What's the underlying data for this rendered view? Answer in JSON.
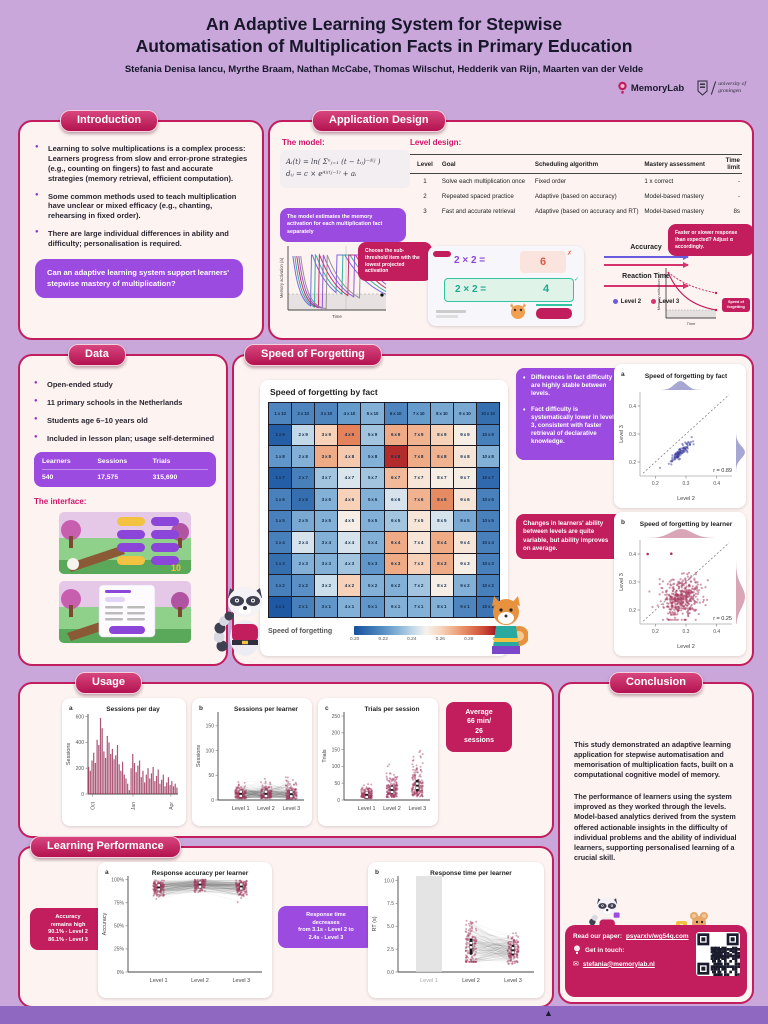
{
  "poster": {
    "title_line1": "An Adaptive Learning System for Stepwise",
    "title_line2": "Automatisation of Multiplication Facts in Primary Education",
    "authors": "Stefania Denisa Iancu, Myrthe Braam, Nathan McCabe, Thomas Wilschut, Hedderik van Rijn, Maarten van der Velde",
    "logos": {
      "memorylab": "MemoryLab",
      "university_line1": "university of",
      "university_line2": "groningen"
    }
  },
  "colors": {
    "accent_crimson": "#c21d5c",
    "accent_purple": "#9b4be0",
    "lavender_bg": "#c9a7db",
    "panel_bg": "#fdf4f2",
    "heat_blue": "#15509d",
    "heat_red": "#9e1020"
  },
  "introduction": {
    "heading": "Introduction",
    "bullets": [
      "Learning to solve multiplications is a complex process: Learners progress from slow and error-prone strategies (e.g., counting on fingers) to fast and accurate strategies (memory retrieval, efficient computation).",
      "Some common methods used to teach multiplication have unclear or mixed efficacy (e.g., chanting, rehearsing in fixed order).",
      "There are large individual differences in ability and difficulty; personalisation is required."
    ],
    "question": "Can an adaptive learning system support learners' stepwise mastery of multiplication?"
  },
  "application_design": {
    "heading": "Application Design",
    "model_label": "The model:",
    "formula_line1": "Aᵢ(t) = ln( Σⁿⱼ₌₁ (t − tᵢⱼ)⁻ᵈⁱʲ )",
    "formula_line2": "dᵢⱼ = c × eᴬⁱ⁽ᵗʲ⁻¹⁾ + aᵢ",
    "model_note": "The model estimates the memory activation for each multiplication fact separately",
    "level_label": "Level design:",
    "table": {
      "headers": [
        "Level",
        "Goal",
        "Scheduling algorithm",
        "Mastery assessment",
        "Time limit"
      ],
      "rows": [
        [
          "1",
          "Solve each multiplication once",
          "Fixed order",
          "1 x correct",
          "-"
        ],
        [
          "2",
          "Repeated spaced practice",
          "Adaptive (based on accuracy)",
          "Model-based mastery",
          "-"
        ],
        [
          "3",
          "Fast and accurate retrieval",
          "Adaptive (based on accuracy and RT)",
          "Model-based mastery",
          "8s"
        ]
      ]
    },
    "callout_choose": "Choose the sub-threshold item with the lowest projected activation",
    "callout_adjust": "Faster or slower response than expected? Adjust α accordingly.",
    "axis_y": "Memory activation (a)",
    "axis_x": "Time",
    "speed_chip_line1": "Speed of",
    "speed_chip_line2": "forgetting",
    "flow": {
      "accuracy_label": "Accuracy",
      "reaction_time_label": "Reaction Time",
      "legend": [
        "Level 2",
        "Level 3"
      ]
    },
    "demo": {
      "q1": "2 × 2 =",
      "a1": "6",
      "q2": "2 × 2 =",
      "a2": "4"
    }
  },
  "data_section": {
    "heading": "Data",
    "bullets": [
      "Open-ended study",
      "11 primary schools in the Netherlands",
      "Students age 6–10 years old",
      "Included in lesson plan; usage self-determined"
    ],
    "stats": {
      "headers": [
        "Learners",
        "Sessions",
        "Trials"
      ],
      "values": [
        "540",
        "17,575",
        "315,690"
      ]
    },
    "interface_label": "The interface:"
  },
  "speed_of_forgetting": {
    "heading": "Speed of Forgetting",
    "callout_stability": [
      "Differences in fact difficulty are highly stable between levels.",
      "Fact difficulty is systematically lower in level 3, consistent with faster retrieval of declarative knowledge."
    ],
    "callout_learners": "Changes in learners' ability between levels are quite variable, but ability improves on average."
  },
  "usage": {
    "heading": "Usage",
    "badge_lines": [
      "Average",
      "66 min/",
      "26",
      "sessions"
    ]
  },
  "learning_performance": {
    "heading": "Learning Performance",
    "badge_accuracy_lines": [
      "Accuracy",
      "remains high",
      "90.1% - Level 2",
      "86.1% - Level 3"
    ],
    "badge_rt_lines": [
      "Response time",
      "decreases",
      "from 3.1s - Level 2 to",
      "2.4s - Level 3"
    ]
  },
  "conclusion": {
    "heading": "Conclusion",
    "p1": "This study demonstrated an adaptive learning application for stepwise automatisation and memorisation of multiplication facts, built on a computational cognitive model of memory.",
    "p2": "The performance of learners using the system improved as they worked through the levels. Model-based analytics derived from the system offered actionable insights in the difficulty of individual problems and the ability of individual learners, supporting personalised learning of a crucial skill."
  },
  "contact": {
    "paper_prefix": "Read our paper: ",
    "paper_link": "psyarxiv/wg54q.com",
    "touch": "Get in touch:",
    "email": "stefania@memorylab.nl"
  },
  "chart_data": [
    {
      "id": "forgetting-heatmap",
      "type": "heatmap",
      "title": "Speed of forgetting by fact",
      "col_factors": [
        1,
        2,
        3,
        4,
        5,
        6,
        7,
        8,
        9,
        10
      ],
      "row_factors": [
        10,
        9,
        8,
        7,
        6,
        5,
        4,
        3,
        2,
        1
      ],
      "values": [
        [
          0.214,
          0.214,
          0.214,
          0.222,
          0.228,
          0.214,
          0.222,
          0.226,
          0.226,
          0.206
        ],
        [
          0.2,
          0.24,
          0.262,
          0.282,
          0.234,
          0.272,
          0.27,
          0.262,
          0.252,
          0.212
        ],
        [
          0.22,
          0.228,
          0.272,
          0.264,
          0.228,
          0.3,
          0.272,
          0.27,
          0.255,
          0.228
        ],
        [
          0.2,
          0.212,
          0.234,
          0.245,
          0.234,
          0.268,
          0.255,
          0.252,
          0.252,
          0.204
        ],
        [
          0.212,
          0.206,
          0.228,
          0.262,
          0.228,
          0.244,
          0.27,
          0.28,
          0.255,
          0.212
        ],
        [
          0.212,
          0.226,
          0.228,
          0.252,
          0.228,
          0.234,
          0.255,
          0.244,
          0.226,
          0.212
        ],
        [
          0.212,
          0.244,
          0.228,
          0.244,
          0.228,
          0.272,
          0.255,
          0.272,
          0.255,
          0.212
        ],
        [
          0.206,
          0.228,
          0.228,
          0.234,
          0.22,
          0.272,
          0.262,
          0.272,
          0.252,
          0.212
        ],
        [
          0.212,
          0.218,
          0.242,
          0.262,
          0.228,
          0.228,
          0.234,
          0.252,
          0.228,
          0.212
        ],
        [
          0.198,
          0.212,
          0.22,
          0.228,
          0.22,
          0.228,
          0.228,
          0.228,
          0.214,
          0.208
        ]
      ],
      "colorbar": {
        "label": "Speed of forgetting",
        "min": 0.2,
        "max": 0.3,
        "ticks": [
          "0.20",
          "0.22",
          "0.24",
          "0.26",
          "0.28",
          "0.30"
        ]
      }
    },
    {
      "id": "sof-by-fact",
      "panel_letter": "a",
      "type": "scatter",
      "title": "Speed of forgetting by fact",
      "xlabel": "Level 2",
      "ylabel": "Level 3",
      "axis_ticks": [
        "0.2",
        "0.3",
        "0.4"
      ],
      "axis_range": [
        0.15,
        0.45
      ],
      "r_label": "r = 0.89",
      "n_points": 105,
      "cluster": {
        "x_mean": 0.282,
        "x_sd": 0.017,
        "y_offset": -0.047,
        "y_noise": 0.009
      },
      "dot_color": "#3b3b9e",
      "bump_top": {
        "c": 0.282,
        "s": 0.02
      },
      "bump_right": {
        "c": 0.235,
        "s": 0.022
      }
    },
    {
      "id": "sof-by-learner",
      "panel_letter": "b",
      "type": "scatter",
      "title": "Speed of forgetting by learner",
      "xlabel": "Level 2",
      "ylabel": "Level 3",
      "axis_ticks": [
        "0.2",
        "0.3",
        "0.4"
      ],
      "axis_range": [
        0.15,
        0.45
      ],
      "r_label": "r = 0.25",
      "n_points": 420,
      "cluster": {
        "x_mean": 0.285,
        "x_sd": 0.031,
        "y_mean": 0.243,
        "slope": 0.3,
        "y_noise": 0.037
      },
      "dot_color": "#a83a5e",
      "bump_top": {
        "c": 0.285,
        "s": 0.035
      },
      "bump_right": {
        "c": 0.247,
        "s": 0.04
      }
    },
    {
      "id": "sessions-per-day",
      "panel_letter": "a",
      "type": "bar",
      "title": "Sessions per day",
      "ylabel": "Sessions",
      "ylim": [
        0,
        620
      ],
      "yticks": [
        0,
        200,
        400,
        600
      ],
      "xticks": [
        "Oct",
        "Jan",
        "Apr"
      ],
      "values": [
        210,
        180,
        260,
        320,
        240,
        420,
        380,
        590,
        510,
        330,
        280,
        450,
        400,
        310,
        350,
        270,
        300,
        380,
        230,
        180,
        250,
        150,
        120,
        80,
        30,
        200,
        310,
        240,
        170,
        220,
        260,
        130,
        180,
        90,
        150,
        200,
        120,
        160,
        210,
        100,
        140,
        190,
        80,
        110,
        150,
        60,
        90,
        130,
        70,
        100,
        60,
        80,
        50
      ]
    },
    {
      "id": "sessions-per-learner",
      "panel_letter": "b",
      "type": "strip",
      "title": "Sessions per learner",
      "ylabel": "Sessions",
      "ylim": [
        0,
        178
      ],
      "yticks": [
        0,
        50,
        100,
        150
      ],
      "categories": [
        "Level 1",
        "Level 2",
        "Level 3"
      ],
      "connect": true,
      "n_learners": 150,
      "col_params": [
        {
          "base": 3,
          "spread": 13,
          "cap": 65
        },
        {
          "base": 3,
          "spread": 15,
          "cap": 85
        },
        {
          "base": 2,
          "spread": 15,
          "cap": 172
        }
      ]
    },
    {
      "id": "trials-per-session",
      "panel_letter": "c",
      "type": "strip",
      "title": "Trials per session",
      "ylabel": "Trials",
      "ylim": [
        0,
        262
      ],
      "yticks": [
        0,
        50,
        100,
        150,
        200,
        250
      ],
      "categories": [
        "Level 1",
        "Level 2",
        "Level 3"
      ],
      "connect": false,
      "n_learners": 170,
      "col_params": [
        {
          "base": 5,
          "spread": 16,
          "cap": 130
        },
        {
          "base": 8,
          "spread": 30,
          "cap": 235
        },
        {
          "base": 10,
          "spread": 40,
          "cap": 250
        }
      ]
    },
    {
      "id": "accuracy-per-learner",
      "panel_letter": "a",
      "type": "strip",
      "title": "Response accuracy per learner",
      "ylabel": "Accuracy",
      "ylim": [
        0,
        1.04
      ],
      "yticks": [
        0,
        0.25,
        0.5,
        0.75,
        1
      ],
      "ytick_labels": [
        "0%",
        "25%",
        "50%",
        "75%",
        "100%"
      ],
      "categories": [
        "Level 1",
        "Level 2",
        "Level 3"
      ],
      "connect": true,
      "n_learners": 150,
      "accuracy_mode": true,
      "reported_medians": [
        "90.1% - Level 2",
        "86.1% - Level 3"
      ]
    },
    {
      "id": "rt-per-learner",
      "panel_letter": "b",
      "type": "strip",
      "title": "Response time per learner",
      "ylabel": "RT (s)",
      "ylim": [
        0,
        10.5
      ],
      "yticks": [
        0,
        2.5,
        5,
        7.5,
        10
      ],
      "ytick_labels": [
        "0.0",
        "2.5",
        "5.0",
        "7.5",
        "10.0"
      ],
      "categories": [
        "Level 1",
        "Level 2",
        "Level 3"
      ],
      "connect": true,
      "n_learners": 150,
      "rt_mode": true,
      "gray_first": true,
      "reported_medians": [
        null,
        3.1,
        2.4
      ]
    }
  ]
}
